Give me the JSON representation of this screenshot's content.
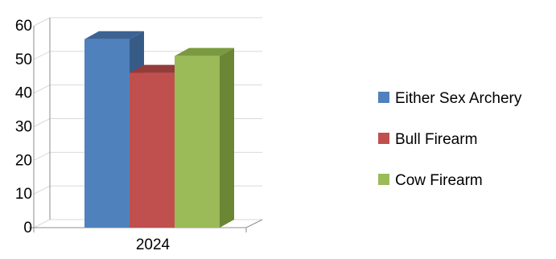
{
  "chart_data": {
    "type": "bar",
    "title": "",
    "xlabel": "",
    "ylabel": "",
    "categories": [
      "2024"
    ],
    "series": [
      {
        "name": "Either Sex Archery",
        "values": [
          56
        ],
        "color": "#4f81bd",
        "top_color": "#3c6394",
        "side_color": "#375b87"
      },
      {
        "name": "Bull Firearm",
        "values": [
          46
        ],
        "color": "#c0504d",
        "top_color": "#943c3a",
        "side_color": "#8a3836"
      },
      {
        "name": "Cow Firearm",
        "values": [
          51
        ],
        "color": "#9bbb59",
        "top_color": "#7a9a3f",
        "side_color": "#6b8735"
      }
    ],
    "ylim": [
      0,
      60
    ],
    "yticks": [
      "0",
      "10",
      "20",
      "30",
      "40",
      "50",
      "60"
    ],
    "grid": true,
    "legend": "right",
    "style": "3d-column"
  }
}
